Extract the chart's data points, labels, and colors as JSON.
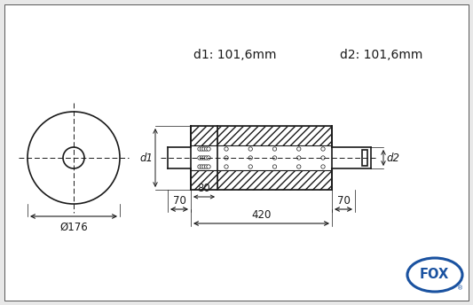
{
  "bg_color": "#e8e8e8",
  "draw_bg": "#ffffff",
  "line_color": "#1a1a1a",
  "fox_blue": "#1a52a0",
  "d1_label": "d1: 101,6mm",
  "d2_label": "d2: 101,6mm",
  "dim_176": "Ø176",
  "dim_420": "420",
  "dim_80": "80",
  "dim_70_left": "70",
  "dim_70_right": "70",
  "d1_arrow": "d1",
  "d2_arrow": "d2",
  "font_size_dim": 8.5,
  "font_size_label": 10,
  "lw": 1.2
}
